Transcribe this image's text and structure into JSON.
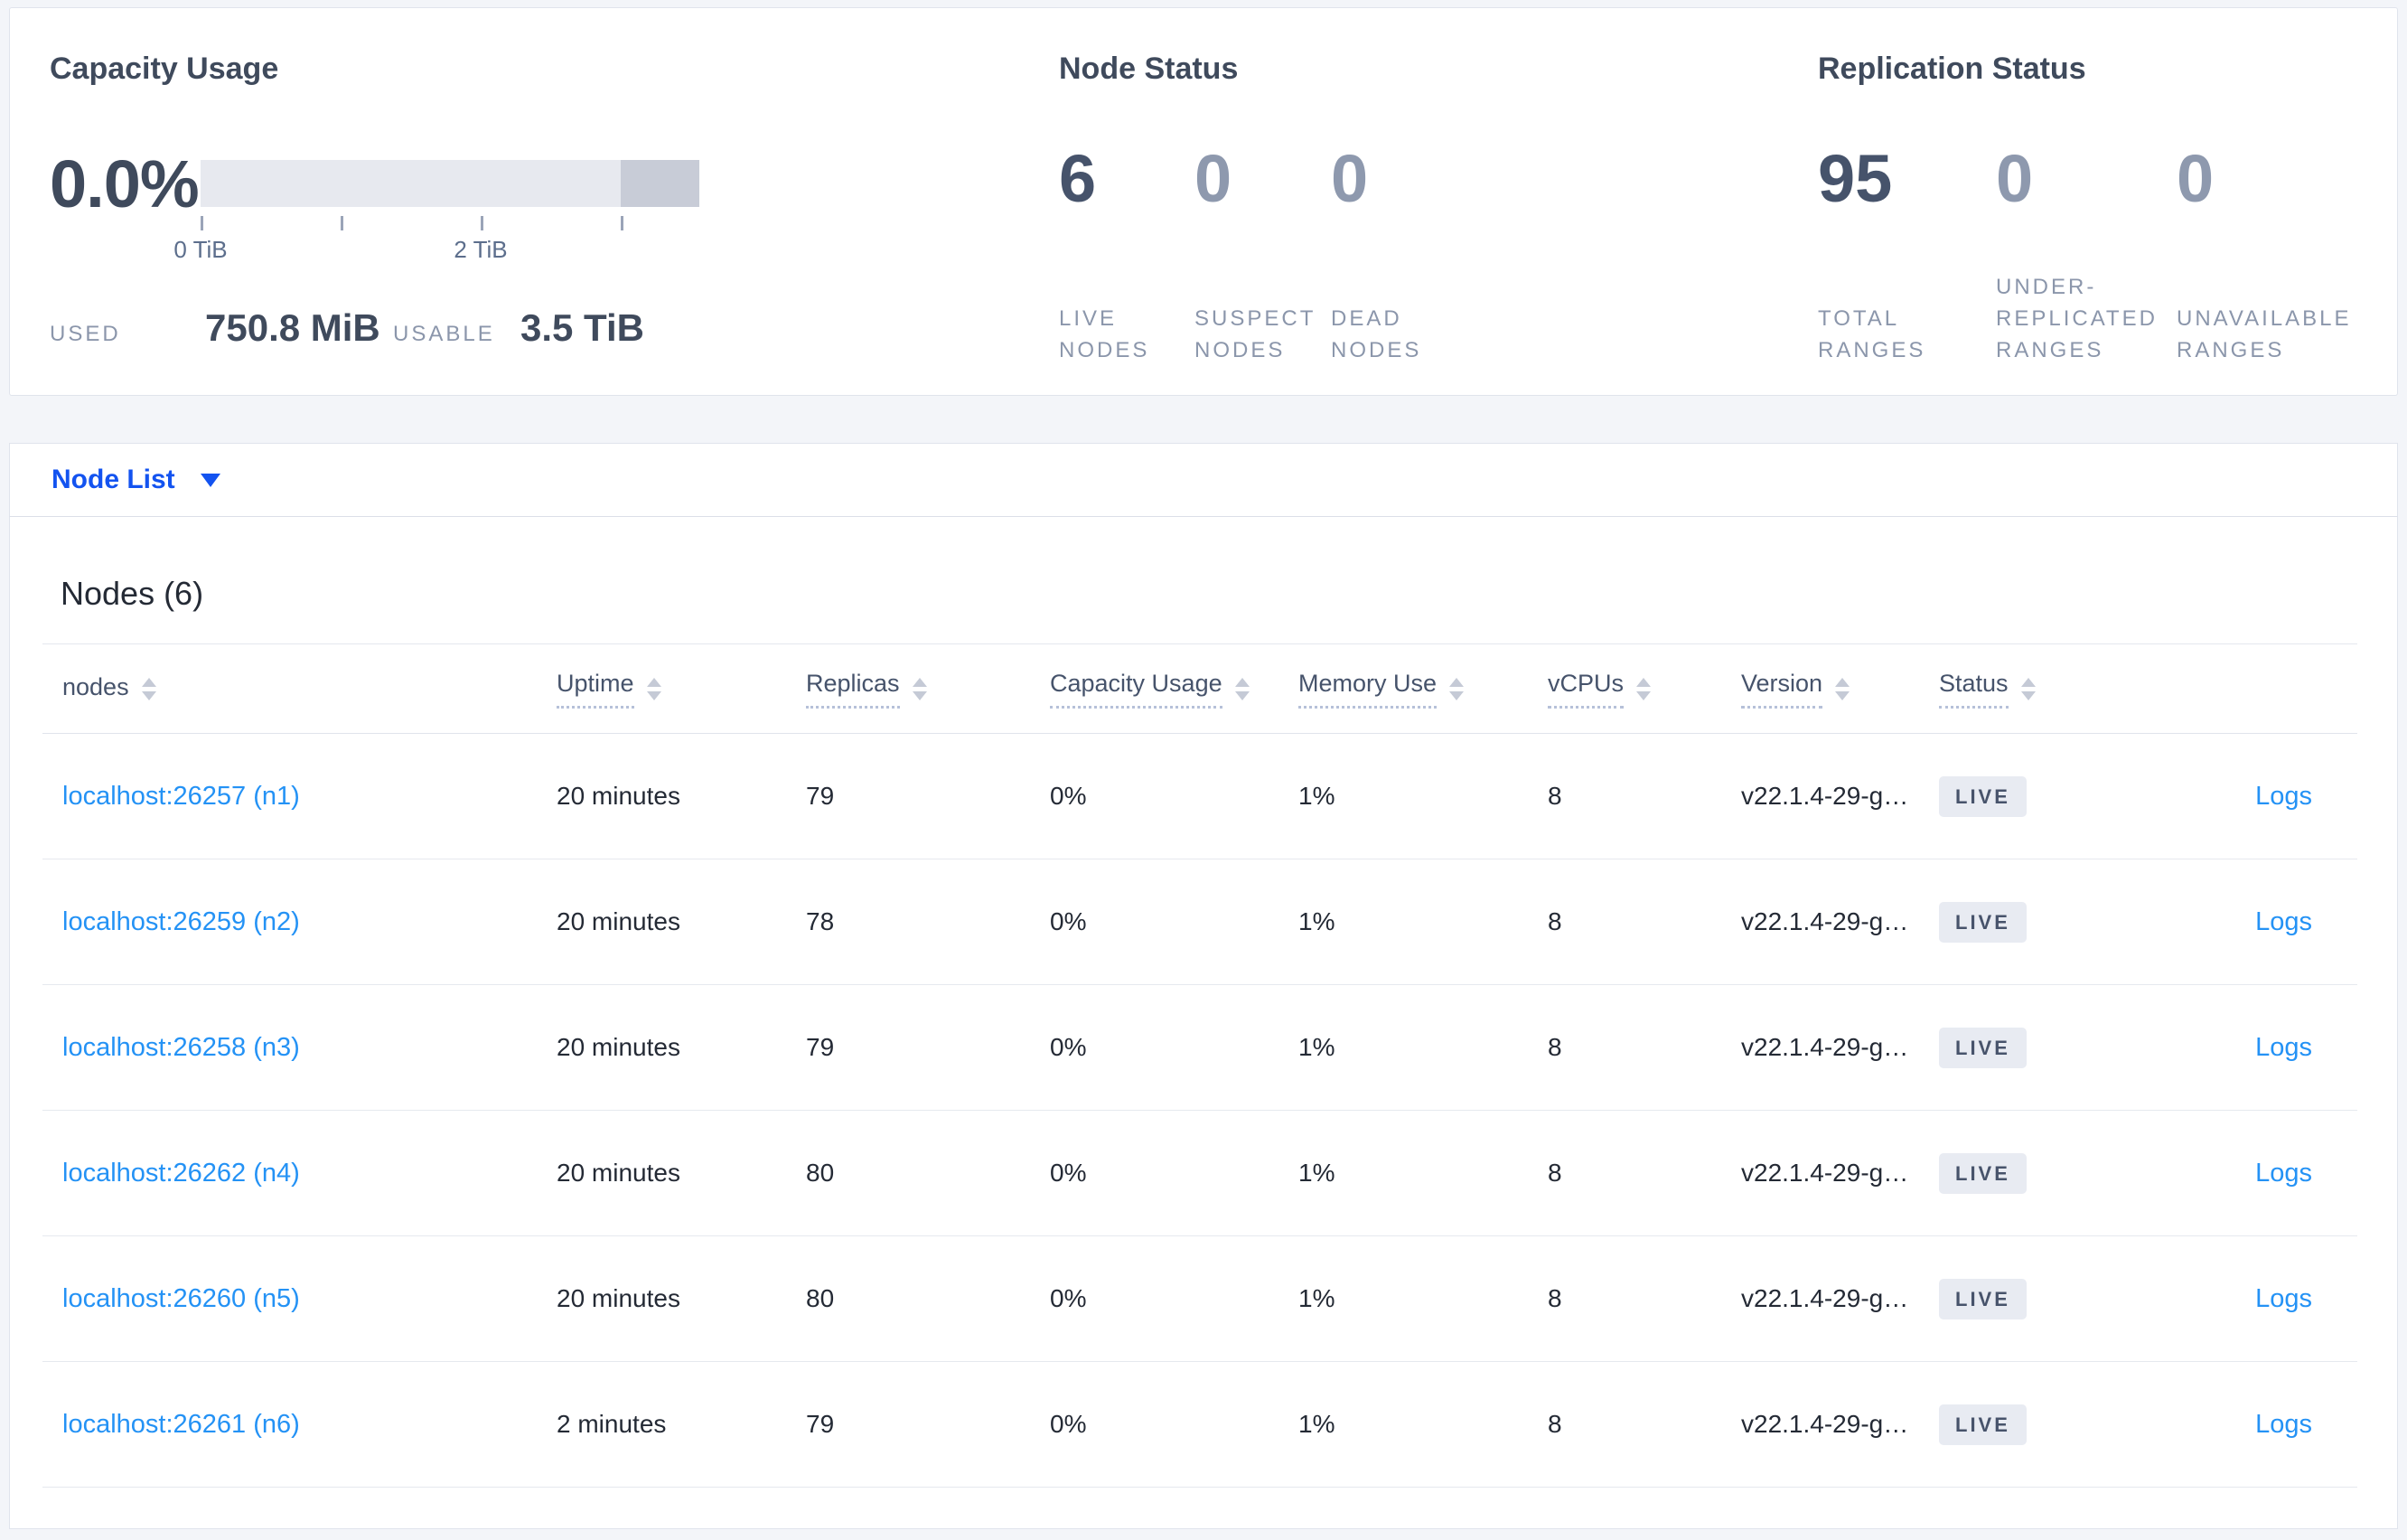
{
  "capacity_usage": {
    "title": "Capacity Usage",
    "percent": "0.0%",
    "bar": {
      "track_color": "#e7e9ef",
      "segment_color": "#c8ccd7",
      "segment_start_pct": 84.2,
      "ticks": [
        {
          "pos_pct": 0,
          "label": "0 TiB"
        },
        {
          "pos_pct": 28.1,
          "label": ""
        },
        {
          "pos_pct": 56.2,
          "label": "2 TiB"
        },
        {
          "pos_pct": 84.2,
          "label": ""
        }
      ]
    },
    "used_label": "USED",
    "used_value": "750.8 MiB",
    "usable_label": "USABLE",
    "usable_value": "3.5 TiB"
  },
  "node_status": {
    "title": "Node Status",
    "stats": [
      {
        "value": "6",
        "label": "LIVE\nNODES",
        "emphasized": true
      },
      {
        "value": "0",
        "label": "SUSPECT\nNODES",
        "emphasized": false
      },
      {
        "value": "0",
        "label": "DEAD\nNODES",
        "emphasized": false
      }
    ]
  },
  "replication_status": {
    "title": "Replication Status",
    "stats": [
      {
        "value": "95",
        "label": "TOTAL\nRANGES",
        "emphasized": true
      },
      {
        "value": "0",
        "label": "UNDER-\nREPLICATED\nRANGES",
        "emphasized": false
      },
      {
        "value": "0",
        "label": "UNAVAILABLE\nRANGES",
        "emphasized": false
      }
    ]
  },
  "view_selector": {
    "label": "Node List"
  },
  "nodes_table": {
    "title": "Nodes (6)",
    "columns": [
      {
        "label": "nodes",
        "sortable": true,
        "underlined": false
      },
      {
        "label": "Uptime",
        "sortable": true,
        "underlined": true
      },
      {
        "label": "Replicas",
        "sortable": true,
        "underlined": true
      },
      {
        "label": "Capacity Usage",
        "sortable": true,
        "underlined": true
      },
      {
        "label": "Memory Use",
        "sortable": true,
        "underlined": true
      },
      {
        "label": "vCPUs",
        "sortable": true,
        "underlined": true
      },
      {
        "label": "Version",
        "sortable": true,
        "underlined": true
      },
      {
        "label": "Status",
        "sortable": true,
        "underlined": true
      }
    ],
    "live_label": "LIVE",
    "logs_label": "Logs",
    "rows": [
      {
        "node": "localhost:26257 (n1)",
        "uptime": "20 minutes",
        "replicas": "79",
        "capacity_usage": "0%",
        "memory_use": "1%",
        "vcpus": "8",
        "version": "v22.1.4-29-g…",
        "status": "LIVE"
      },
      {
        "node": "localhost:26259 (n2)",
        "uptime": "20 minutes",
        "replicas": "78",
        "capacity_usage": "0%",
        "memory_use": "1%",
        "vcpus": "8",
        "version": "v22.1.4-29-g…",
        "status": "LIVE"
      },
      {
        "node": "localhost:26258 (n3)",
        "uptime": "20 minutes",
        "replicas": "79",
        "capacity_usage": "0%",
        "memory_use": "1%",
        "vcpus": "8",
        "version": "v22.1.4-29-g…",
        "status": "LIVE"
      },
      {
        "node": "localhost:26262 (n4)",
        "uptime": "20 minutes",
        "replicas": "80",
        "capacity_usage": "0%",
        "memory_use": "1%",
        "vcpus": "8",
        "version": "v22.1.4-29-g…",
        "status": "LIVE"
      },
      {
        "node": "localhost:26260 (n5)",
        "uptime": "20 minutes",
        "replicas": "80",
        "capacity_usage": "0%",
        "memory_use": "1%",
        "vcpus": "8",
        "version": "v22.1.4-29-g…",
        "status": "LIVE"
      },
      {
        "node": "localhost:26261 (n6)",
        "uptime": "2 minutes",
        "replicas": "79",
        "capacity_usage": "0%",
        "memory_use": "1%",
        "vcpus": "8",
        "version": "v22.1.4-29-g…",
        "status": "LIVE"
      }
    ]
  },
  "colors": {
    "accent_blue": "#1353f0",
    "link_blue": "#2492f5",
    "badge_bg": "#e8ebf2",
    "bar_track": "#e7e9ef",
    "bar_segment": "#c8ccd7",
    "page_bg": "#f3f5f9"
  }
}
